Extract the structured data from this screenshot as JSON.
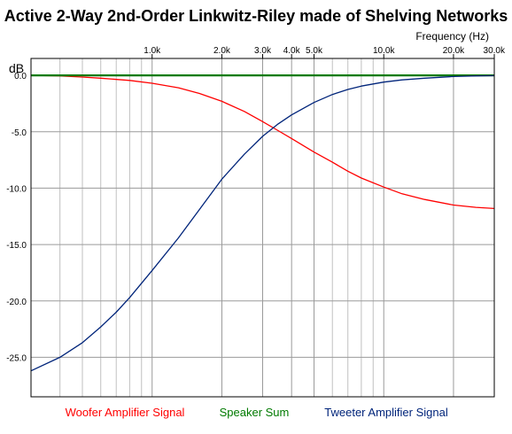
{
  "chart_data": {
    "type": "line",
    "title": "Active 2-Way 2nd-Order Linkwitz-Riley made of Shelving Networks",
    "xlabel": "Frequency  (Hz)",
    "ylabel": "dB",
    "x_scale": "log",
    "xlim": [
      300,
      30000
    ],
    "ylim": [
      -28.5,
      1.5
    ],
    "grid": true,
    "x_ticks": [
      {
        "value": 1000,
        "label": "1.0k"
      },
      {
        "value": 2000,
        "label": "2.0k"
      },
      {
        "value": 3000,
        "label": "3.0k"
      },
      {
        "value": 4000,
        "label": "4.0k"
      },
      {
        "value": 5000,
        "label": "5.0k"
      },
      {
        "value": 10000,
        "label": "10.0k"
      },
      {
        "value": 20000,
        "label": "20.0k"
      },
      {
        "value": 30000,
        "label": "30.0k"
      }
    ],
    "x_minor_grid": [
      400,
      500,
      600,
      700,
      800,
      900,
      6000,
      7000,
      8000,
      9000
    ],
    "y_ticks": [
      {
        "value": 0,
        "label": "0.0"
      },
      {
        "value": -5,
        "label": "-5.0"
      },
      {
        "value": -10,
        "label": "-10.0"
      },
      {
        "value": -15,
        "label": "-15.0"
      },
      {
        "value": -20,
        "label": "-20.0"
      },
      {
        "value": -25,
        "label": "-25.0"
      }
    ],
    "legend_position": "bottom",
    "series": [
      {
        "name": "Woofer Amplifier Signal",
        "color": "#ff0000",
        "x": [
          300,
          400,
          500,
          600,
          800,
          1000,
          1300,
          1600,
          2000,
          2500,
          3000,
          3500,
          4000,
          5000,
          6000,
          7000,
          8000,
          10000,
          12000,
          15000,
          20000,
          25000,
          30000
        ],
        "y": [
          0.0,
          -0.05,
          -0.15,
          -0.25,
          -0.45,
          -0.7,
          -1.1,
          -1.6,
          -2.3,
          -3.2,
          -4.1,
          -4.9,
          -5.6,
          -6.8,
          -7.7,
          -8.5,
          -9.1,
          -9.9,
          -10.5,
          -11.0,
          -11.5,
          -11.7,
          -11.8
        ]
      },
      {
        "name": "Speaker Sum",
        "color": "#007a00",
        "x": [
          300,
          30000
        ],
        "y": [
          0.0,
          0.0
        ]
      },
      {
        "name": "Tweeter Amplifier Signal",
        "color": "#00247a",
        "x": [
          300,
          400,
          500,
          600,
          700,
          800,
          1000,
          1300,
          1600,
          2000,
          2500,
          3000,
          3500,
          4000,
          5000,
          6000,
          7000,
          8000,
          10000,
          12000,
          15000,
          20000,
          25000,
          30000
        ],
        "y": [
          -26.2,
          -25.0,
          -23.7,
          -22.3,
          -21.0,
          -19.7,
          -17.3,
          -14.4,
          -11.9,
          -9.2,
          -7.0,
          -5.4,
          -4.3,
          -3.5,
          -2.4,
          -1.7,
          -1.25,
          -0.95,
          -0.6,
          -0.4,
          -0.25,
          -0.1,
          -0.05,
          -0.02
        ]
      }
    ]
  }
}
